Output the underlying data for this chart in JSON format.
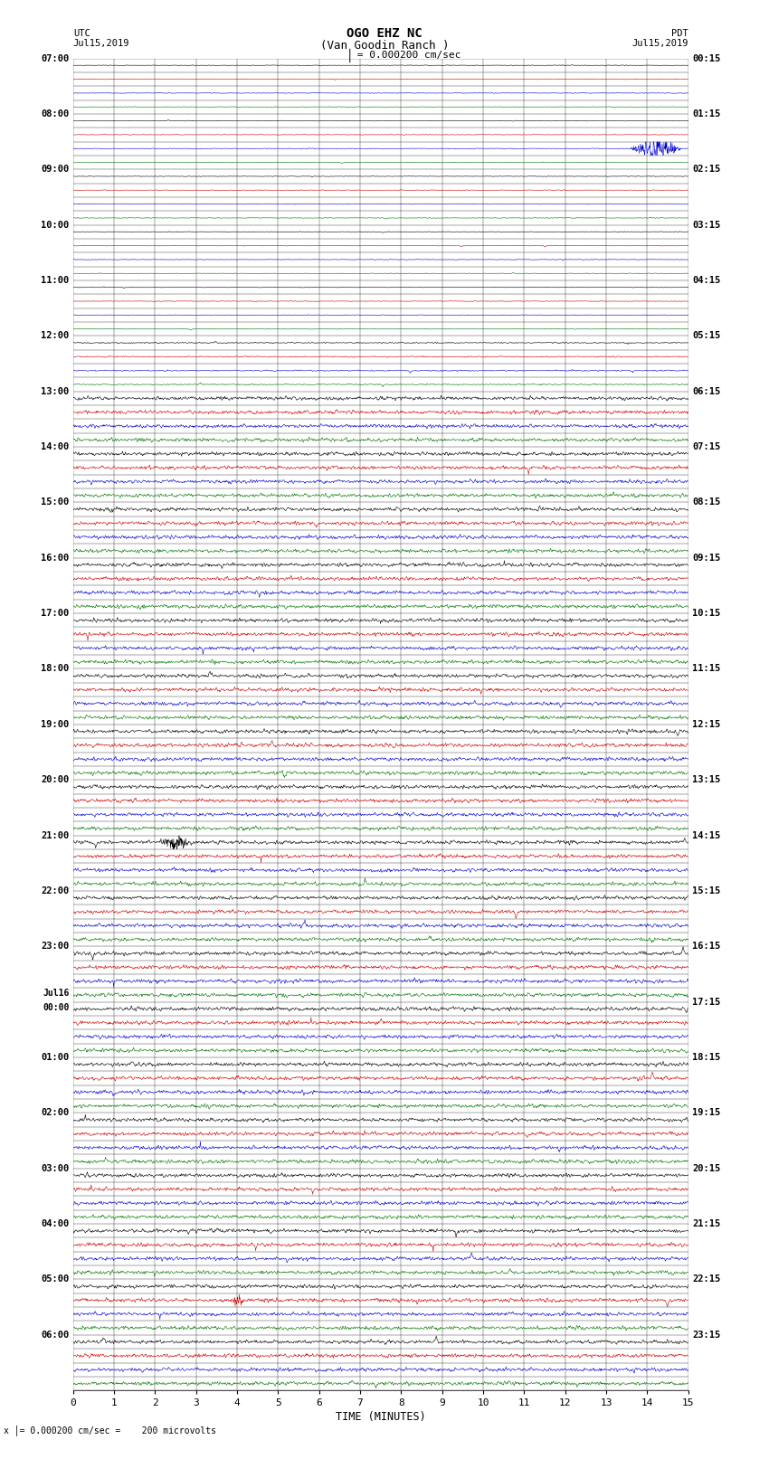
{
  "title_line1": "OGO EHZ NC",
  "title_line2": "(Van Goodin Ranch )",
  "scale_text": "I = 0.000200 cm/sec",
  "left_label_top": "UTC",
  "left_label_date": "Jul15,2019",
  "right_label_top": "PDT",
  "right_label_date": "Jul15,2019",
  "xlabel": "TIME (MINUTES)",
  "bottom_note": "x |= 0.000200 cm/sec =    200 microvolts",
  "xmin": 0,
  "xmax": 15,
  "bg_color": "#ffffff",
  "trace_colors": [
    "#000000",
    "#cc0000",
    "#0000cc",
    "#007700"
  ],
  "utc_labels": [
    [
      "07:00",
      0
    ],
    [
      "08:00",
      4
    ],
    [
      "09:00",
      8
    ],
    [
      "10:00",
      12
    ],
    [
      "11:00",
      16
    ],
    [
      "12:00",
      20
    ],
    [
      "13:00",
      24
    ],
    [
      "14:00",
      28
    ],
    [
      "15:00",
      32
    ],
    [
      "16:00",
      36
    ],
    [
      "17:00",
      40
    ],
    [
      "18:00",
      44
    ],
    [
      "19:00",
      48
    ],
    [
      "20:00",
      52
    ],
    [
      "21:00",
      56
    ],
    [
      "22:00",
      60
    ],
    [
      "23:00",
      64
    ],
    [
      "Jul16\n00:00",
      68
    ],
    [
      "01:00",
      72
    ],
    [
      "02:00",
      76
    ],
    [
      "03:00",
      80
    ],
    [
      "04:00",
      84
    ],
    [
      "05:00",
      88
    ],
    [
      "06:00",
      92
    ]
  ],
  "pdt_labels": [
    [
      "00:15",
      0
    ],
    [
      "01:15",
      4
    ],
    [
      "02:15",
      8
    ],
    [
      "03:15",
      12
    ],
    [
      "04:15",
      16
    ],
    [
      "05:15",
      20
    ],
    [
      "06:15",
      24
    ],
    [
      "07:15",
      28
    ],
    [
      "08:15",
      32
    ],
    [
      "09:15",
      36
    ],
    [
      "10:15",
      40
    ],
    [
      "11:15",
      44
    ],
    [
      "12:15",
      48
    ],
    [
      "13:15",
      52
    ],
    [
      "14:15",
      56
    ],
    [
      "15:15",
      60
    ],
    [
      "16:15",
      64
    ],
    [
      "17:15",
      68
    ],
    [
      "18:15",
      72
    ],
    [
      "19:15",
      76
    ],
    [
      "20:15",
      80
    ],
    [
      "21:15",
      84
    ],
    [
      "22:15",
      88
    ],
    [
      "23:15",
      92
    ]
  ],
  "n_traces": 96,
  "figwidth": 8.5,
  "figheight": 16.13,
  "dpi": 100
}
